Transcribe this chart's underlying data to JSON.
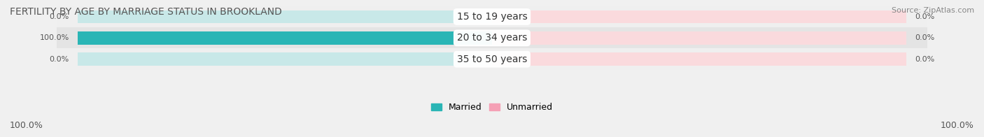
{
  "title": "FERTILITY BY AGE BY MARRIAGE STATUS IN BROOKLAND",
  "source": "Source: ZipAtlas.com",
  "categories": [
    "15 to 19 years",
    "20 to 34 years",
    "35 to 50 years"
  ],
  "married_values": [
    0.0,
    100.0,
    0.0
  ],
  "unmarried_values": [
    0.0,
    0.0,
    0.0
  ],
  "married_color": "#2ab5b5",
  "unmarried_color": "#f5a0b5",
  "bar_bg_married": "#c8e8e8",
  "bar_bg_unmarried": "#fadadd",
  "title_fontsize": 10,
  "source_fontsize": 8,
  "tick_fontsize": 9,
  "bar_label_fontsize": 8,
  "category_fontsize": 10,
  "bg_color": "#f0f0f0",
  "row_bg_colors": [
    "#efefef",
    "#e4e4e4",
    "#efefef"
  ],
  "max_val": 100.0
}
